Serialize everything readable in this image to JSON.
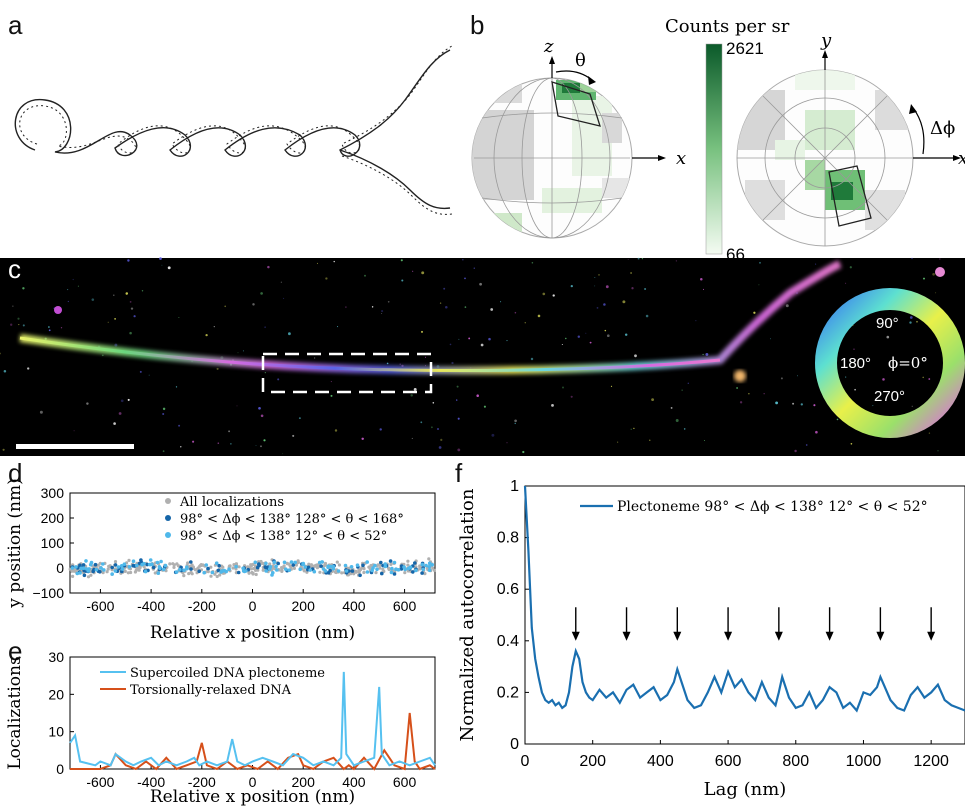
{
  "panels": {
    "a": "a",
    "b": "b",
    "c": "c",
    "d": "d",
    "e": "e",
    "f": "f"
  },
  "panel_b": {
    "colorbar_title": "Counts per sr",
    "colorbar_max": "2621",
    "colorbar_min": "66",
    "sphere1_axes": {
      "z": "z",
      "x": "x",
      "angle": "θ"
    },
    "sphere2_axes": {
      "y": "y",
      "x": "x",
      "angle": "Δϕ"
    },
    "colors": {
      "high": "#0b5a2a",
      "low": "#f4fbf2",
      "gray": "#cfcfcf"
    }
  },
  "panel_c": {
    "ring_labels": {
      "top": "90°",
      "left": "180°",
      "right": "ϕ=0°",
      "bottom": "270°"
    }
  },
  "chart_data": [
    {
      "type": "scatter",
      "panel": "d",
      "xlabel": "Relative x position (nm)",
      "ylabel": "y position (nm)",
      "xlim": [
        -720,
        720
      ],
      "ylim": [
        -100,
        300
      ],
      "xticks": [
        "-600",
        "-400",
        "-200",
        "0",
        "200",
        "400",
        "600"
      ],
      "yticks": [
        "300",
        "200",
        "100",
        "0",
        "−100"
      ],
      "series": [
        {
          "name": "All localizations",
          "color": "#b0b0b0"
        },
        {
          "name": "98° < Δϕ < 138° 128° < θ < 168°",
          "color": "#1565a8"
        },
        {
          "name": "98° < Δϕ < 138° 12° < θ < 52°",
          "color": "#4fb8ea"
        }
      ]
    },
    {
      "type": "line",
      "panel": "e",
      "xlabel": "Relative x position (nm)",
      "ylabel": "Localizations",
      "xlim": [
        -720,
        720
      ],
      "ylim": [
        0,
        30
      ],
      "xticks": [
        "-600",
        "-400",
        "-200",
        "0",
        "200",
        "400",
        "600"
      ],
      "yticks": [
        "30",
        "20",
        "10",
        "0"
      ],
      "series": [
        {
          "name": "Supercoiled DNA plectoneme",
          "color": "#56c1f0",
          "x": [
            -720,
            -700,
            -680,
            -620,
            -600,
            -560,
            -540,
            -500,
            -470,
            -440,
            -400,
            -370,
            -340,
            -300,
            -260,
            -230,
            -210,
            -180,
            -140,
            -100,
            -80,
            -60,
            -30,
            0,
            40,
            80,
            120,
            160,
            200,
            240,
            280,
            320,
            350,
            360,
            370,
            400,
            440,
            480,
            500,
            510,
            540,
            580,
            620,
            660,
            700,
            720
          ],
          "y": [
            7,
            9,
            2,
            1,
            2,
            1,
            4,
            2,
            1,
            2,
            3,
            1,
            2,
            1,
            2,
            3,
            1,
            2,
            1,
            2,
            8,
            2,
            1,
            2,
            3,
            2,
            1,
            4,
            3,
            1,
            2,
            1,
            3,
            26,
            4,
            1,
            2,
            3,
            22,
            4,
            1,
            2,
            1,
            2,
            3,
            1
          ]
        },
        {
          "name": "Torsionally-relaxed DNA",
          "color": "#d6501a",
          "x": [
            -720,
            -600,
            -560,
            -540,
            -500,
            -460,
            -420,
            -380,
            -340,
            -300,
            -260,
            -220,
            -200,
            -180,
            -140,
            -100,
            -60,
            -20,
            20,
            60,
            100,
            140,
            180,
            200,
            240,
            280,
            320,
            360,
            380,
            400,
            440,
            480,
            520,
            560,
            600,
            620,
            640,
            660,
            700,
            720
          ],
          "y": [
            0,
            0,
            1,
            4,
            1,
            0,
            2,
            0,
            3,
            0,
            1,
            2,
            7,
            1,
            0,
            2,
            0,
            1,
            0,
            2,
            0,
            3,
            4,
            1,
            0,
            2,
            3,
            0,
            1,
            0,
            3,
            0,
            5,
            1,
            0,
            15,
            2,
            0,
            1,
            0
          ]
        }
      ]
    },
    {
      "type": "line",
      "panel": "f",
      "xlabel": "Lag (nm)",
      "ylabel": "Normalized autocorrelation",
      "xlim": [
        0,
        1300
      ],
      "ylim": [
        0,
        1
      ],
      "xticks": [
        "0",
        "200",
        "400",
        "600",
        "800",
        "1000",
        "1200"
      ],
      "yticks": [
        "1",
        "0.8",
        "0.6",
        "0.4",
        "0.2",
        "0"
      ],
      "legend": "Plectoneme 98° < Δϕ < 138° 12° < θ < 52°",
      "arrows_at": [
        150,
        300,
        450,
        600,
        750,
        900,
        1050,
        1200
      ],
      "series": [
        {
          "name": "Plectoneme 98° < Δϕ < 138° 12° < θ < 52°",
          "color": "#1a6fb0",
          "x": [
            0,
            10,
            20,
            30,
            40,
            50,
            60,
            70,
            80,
            90,
            100,
            110,
            120,
            130,
            140,
            150,
            160,
            170,
            180,
            190,
            200,
            220,
            240,
            260,
            280,
            300,
            320,
            340,
            360,
            380,
            400,
            420,
            440,
            450,
            460,
            480,
            500,
            520,
            540,
            560,
            580,
            600,
            620,
            640,
            660,
            680,
            700,
            720,
            740,
            750,
            760,
            780,
            800,
            820,
            840,
            860,
            880,
            900,
            920,
            940,
            960,
            980,
            1000,
            1020,
            1040,
            1050,
            1060,
            1080,
            1100,
            1120,
            1140,
            1160,
            1180,
            1200,
            1220,
            1240,
            1260,
            1280,
            1300
          ],
          "y": [
            1.0,
            0.75,
            0.45,
            0.33,
            0.26,
            0.2,
            0.17,
            0.16,
            0.17,
            0.15,
            0.16,
            0.14,
            0.15,
            0.2,
            0.3,
            0.36,
            0.33,
            0.24,
            0.2,
            0.18,
            0.17,
            0.21,
            0.18,
            0.2,
            0.16,
            0.21,
            0.23,
            0.18,
            0.2,
            0.22,
            0.17,
            0.19,
            0.24,
            0.29,
            0.25,
            0.17,
            0.14,
            0.15,
            0.2,
            0.26,
            0.2,
            0.28,
            0.22,
            0.25,
            0.2,
            0.17,
            0.24,
            0.18,
            0.15,
            0.2,
            0.26,
            0.18,
            0.14,
            0.15,
            0.2,
            0.14,
            0.17,
            0.22,
            0.2,
            0.14,
            0.16,
            0.13,
            0.2,
            0.19,
            0.22,
            0.26,
            0.23,
            0.17,
            0.14,
            0.13,
            0.19,
            0.22,
            0.18,
            0.2,
            0.23,
            0.17,
            0.15,
            0.14,
            0.13
          ]
        }
      ]
    }
  ]
}
